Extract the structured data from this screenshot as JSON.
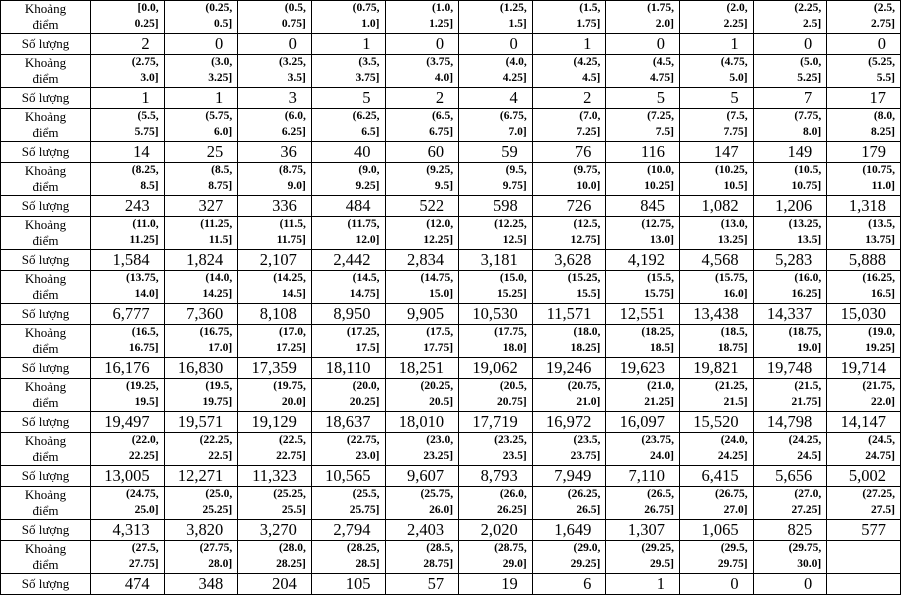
{
  "table": {
    "row_label_interval": "Khoảng\nđiểm",
    "row_label_count": "Số lượng",
    "groups": [
      {
        "intervals": [
          "[0.0,\n0.25]",
          "(0.25,\n0.5]",
          "(0.5,\n0.75]",
          "(0.75,\n1.0]",
          "(1.0,\n1.25]",
          "(1.25,\n1.5]",
          "(1.5,\n1.75]",
          "(1.75,\n2.0]",
          "(2.0,\n2.25]",
          "(2.25,\n2.5]",
          "(2.5,\n2.75]"
        ],
        "counts": [
          "2",
          "0",
          "0",
          "1",
          "0",
          "0",
          "1",
          "0",
          "1",
          "0",
          "0"
        ]
      },
      {
        "intervals": [
          "(2.75,\n3.0]",
          "(3.0,\n3.25]",
          "(3.25,\n3.5]",
          "(3.5,\n3.75]",
          "(3.75,\n4.0]",
          "(4.0,\n4.25]",
          "(4.25,\n4.5]",
          "(4.5,\n4.75]",
          "(4.75,\n5.0]",
          "(5.0,\n5.25]",
          "(5.25,\n5.5]"
        ],
        "counts": [
          "1",
          "1",
          "3",
          "5",
          "2",
          "4",
          "2",
          "5",
          "5",
          "7",
          "17"
        ]
      },
      {
        "intervals": [
          "(5.5,\n5.75]",
          "(5.75,\n6.0]",
          "(6.0,\n6.25]",
          "(6.25,\n6.5]",
          "(6.5,\n6.75]",
          "(6.75,\n7.0]",
          "(7.0,\n7.25]",
          "(7.25,\n7.5]",
          "(7.5,\n7.75]",
          "(7.75,\n8.0]",
          "(8.0,\n8.25]"
        ],
        "counts": [
          "14",
          "25",
          "36",
          "40",
          "60",
          "59",
          "76",
          "116",
          "147",
          "149",
          "179"
        ]
      },
      {
        "intervals": [
          "(8.25,\n8.5]",
          "(8.5,\n8.75]",
          "(8.75,\n9.0]",
          "(9.0,\n9.25]",
          "(9.25,\n9.5]",
          "(9.5,\n9.75]",
          "(9.75,\n10.0]",
          "(10.0,\n10.25]",
          "(10.25,\n10.5]",
          "(10.5,\n10.75]",
          "(10.75,\n11.0]"
        ],
        "counts": [
          "243",
          "327",
          "336",
          "484",
          "522",
          "598",
          "726",
          "845",
          "1,082",
          "1,206",
          "1,318"
        ]
      },
      {
        "intervals": [
          "(11.0,\n11.25]",
          "(11.25,\n11.5]",
          "(11.5,\n11.75]",
          "(11.75,\n12.0]",
          "(12.0,\n12.25]",
          "(12.25,\n12.5]",
          "(12.5,\n12.75]",
          "(12.75,\n13.0]",
          "(13.0,\n13.25]",
          "(13.25,\n13.5]",
          "(13.5,\n13.75]"
        ],
        "counts": [
          "1,584",
          "1,824",
          "2,107",
          "2,442",
          "2,834",
          "3,181",
          "3,628",
          "4,192",
          "4,568",
          "5,283",
          "5,888"
        ]
      },
      {
        "intervals": [
          "(13.75,\n14.0]",
          "(14.0,\n14.25]",
          "(14.25,\n14.5]",
          "(14.5,\n14.75]",
          "(14.75,\n15.0]",
          "(15.0,\n15.25]",
          "(15.25,\n15.5]",
          "(15.5,\n15.75]",
          "(15.75,\n16.0]",
          "(16.0,\n16.25]",
          "(16.25,\n16.5]"
        ],
        "counts": [
          "6,777",
          "7,360",
          "8,108",
          "8,950",
          "9,905",
          "10,530",
          "11,571",
          "12,551",
          "13,438",
          "14,337",
          "15,030"
        ]
      },
      {
        "intervals": [
          "(16.5,\n16.75]",
          "(16.75,\n17.0]",
          "(17.0,\n17.25]",
          "(17.25,\n17.5]",
          "(17.5,\n17.75]",
          "(17.75,\n18.0]",
          "(18.0,\n18.25]",
          "(18.25,\n18.5]",
          "(18.5,\n18.75]",
          "(18.75,\n19.0]",
          "(19.0,\n19.25]"
        ],
        "counts": [
          "16,176",
          "16,830",
          "17,359",
          "18,110",
          "18,251",
          "19,062",
          "19,246",
          "19,623",
          "19,821",
          "19,748",
          "19,714"
        ]
      },
      {
        "intervals": [
          "(19.25,\n19.5]",
          "(19.5,\n19.75]",
          "(19.75,\n20.0]",
          "(20.0,\n20.25]",
          "(20.25,\n20.5]",
          "(20.5,\n20.75]",
          "(20.75,\n21.0]",
          "(21.0,\n21.25]",
          "(21.25,\n21.5]",
          "(21.5,\n21.75]",
          "(21.75,\n22.0]"
        ],
        "counts": [
          "19,497",
          "19,571",
          "19,129",
          "18,637",
          "18,010",
          "17,719",
          "16,972",
          "16,097",
          "15,520",
          "14,798",
          "14,147"
        ]
      },
      {
        "intervals": [
          "(22.0,\n22.25]",
          "(22.25,\n22.5]",
          "(22.5,\n22.75]",
          "(22.75,\n23.0]",
          "(23.0,\n23.25]",
          "(23.25,\n23.5]",
          "(23.5,\n23.75]",
          "(23.75,\n24.0]",
          "(24.0,\n24.25]",
          "(24.25,\n24.5]",
          "(24.5,\n24.75]"
        ],
        "counts": [
          "13,005",
          "12,271",
          "11,323",
          "10,565",
          "9,607",
          "8,793",
          "7,949",
          "7,110",
          "6,415",
          "5,656",
          "5,002"
        ]
      },
      {
        "intervals": [
          "(24.75,\n25.0]",
          "(25.0,\n25.25]",
          "(25.25,\n25.5]",
          "(25.5,\n25.75]",
          "(25.75,\n26.0]",
          "(26.0,\n26.25]",
          "(26.25,\n26.5]",
          "(26.5,\n26.75]",
          "(26.75,\n27.0]",
          "(27.0,\n27.25]",
          "(27.25,\n27.5]"
        ],
        "counts": [
          "4,313",
          "3,820",
          "3,270",
          "2,794",
          "2,403",
          "2,020",
          "1,649",
          "1,307",
          "1,065",
          "825",
          "577"
        ]
      },
      {
        "intervals": [
          "(27.5,\n27.75]",
          "(27.75,\n28.0]",
          "(28.0,\n28.25]",
          "(28.25,\n28.5]",
          "(28.5,\n28.75]",
          "(28.75,\n29.0]",
          "(29.0,\n29.25]",
          "(29.25,\n29.5]",
          "(29.5,\n29.75]",
          "(29.75,\n30.0]",
          ""
        ],
        "counts": [
          "474",
          "348",
          "204",
          "105",
          "57",
          "19",
          "6",
          "1",
          "0",
          "0",
          ""
        ]
      }
    ]
  }
}
